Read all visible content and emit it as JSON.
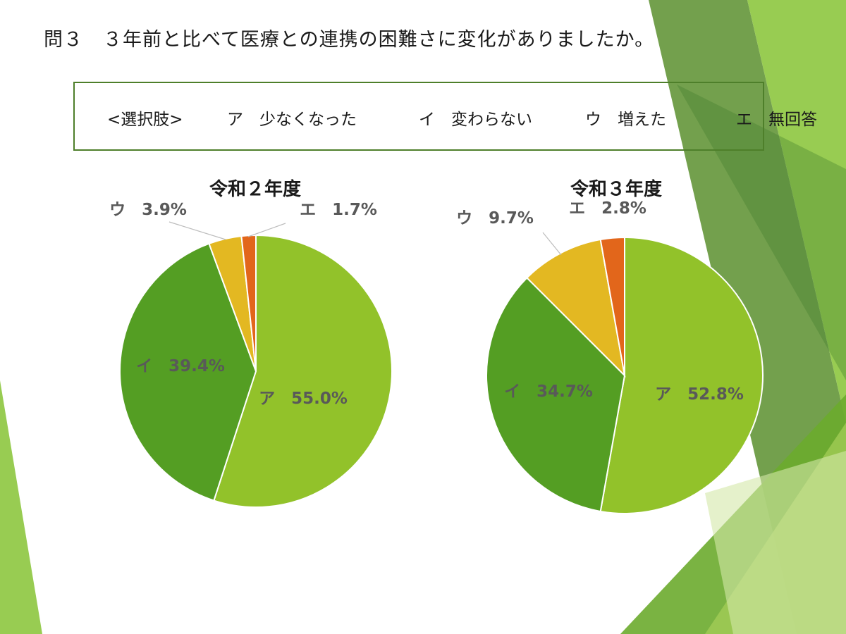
{
  "question": "問３　３年前と比べて医療との連携の困難さに変化がありましたか。",
  "choices_label": "<選択肢>",
  "choices": [
    {
      "key": "ア",
      "text": "少なくなった"
    },
    {
      "key": "イ",
      "text": "変わらない"
    },
    {
      "key": "ウ",
      "text": "増えた"
    },
    {
      "key": "エ",
      "text": "無回答"
    }
  ],
  "colors": {
    "ア": "#92c22a",
    "イ": "#549e23",
    "ウ": "#e3b822",
    "エ": "#e2661b",
    "frame": "#4e7f2a"
  },
  "chart_data": [
    {
      "type": "pie",
      "title": "令和２年度",
      "categories": [
        "ア",
        "イ",
        "ウ",
        "エ"
      ],
      "values": [
        55.0,
        39.4,
        3.9,
        1.7
      ],
      "labels": [
        "ア　55.0%",
        "イ　39.4%",
        "ウ　3.9%",
        "エ　1.7%"
      ]
    },
    {
      "type": "pie",
      "title": "令和３年度",
      "categories": [
        "ア",
        "イ",
        "ウ",
        "エ"
      ],
      "values": [
        52.8,
        34.7,
        9.7,
        2.8
      ],
      "labels": [
        "ア　52.8%",
        "イ　34.7%",
        "ウ　9.7%",
        "エ　2.8%"
      ]
    }
  ]
}
